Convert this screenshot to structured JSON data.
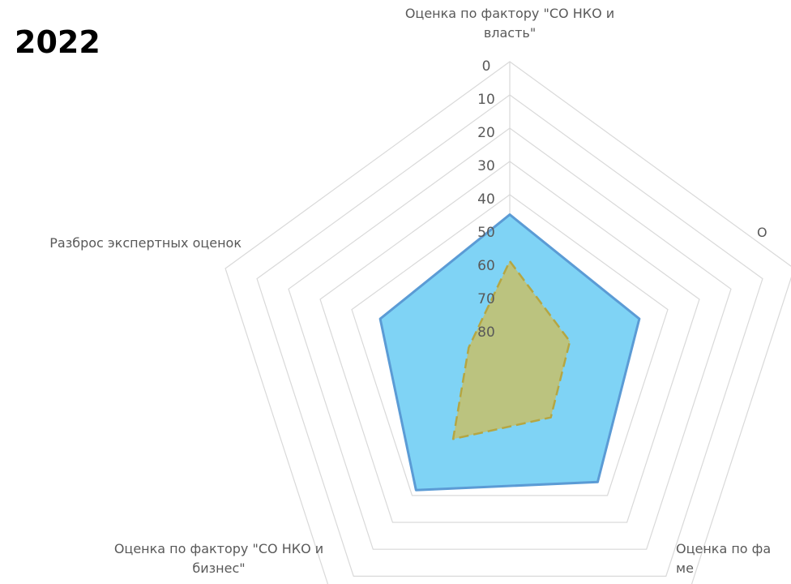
{
  "title": "2022",
  "chart_data": {
    "type": "radar",
    "radial_axis": {
      "min": 0,
      "max": 90,
      "reversed": true,
      "ticks": [
        "0",
        "10",
        "20",
        "30",
        "40",
        "50",
        "60",
        "70",
        "80"
      ]
    },
    "categories": [
      "Оценка по фактору \"СО НКО и власть\"",
      "О",
      "Оценка по фа ме",
      "Оценка по фактору \"СО НКО и бизнес\"",
      "Разброс экспертных оценок"
    ],
    "axis_labels": [
      [
        "Оценка по фактору \"СО НКО и",
        "власть\""
      ],
      [
        "О"
      ],
      [
        "Оценка по фа",
        "ме"
      ],
      [
        "Оценка по фактору \"СО НКО и",
        "бизнес\""
      ],
      [
        "Разброс экспертных оценок"
      ]
    ],
    "series": [
      {
        "values": [
          46,
          49,
          45,
          42,
          49
        ],
        "fill": "#7fd3f5",
        "stroke": "#5b9bd5",
        "dash": false
      },
      {
        "values": [
          60,
          71,
          69,
          61,
          77
        ],
        "fill": "#c5c06a",
        "stroke": "#b5a642",
        "dash": true
      }
    ],
    "grid": true,
    "grid_color": "#d9d9d9",
    "legend": "none"
  }
}
